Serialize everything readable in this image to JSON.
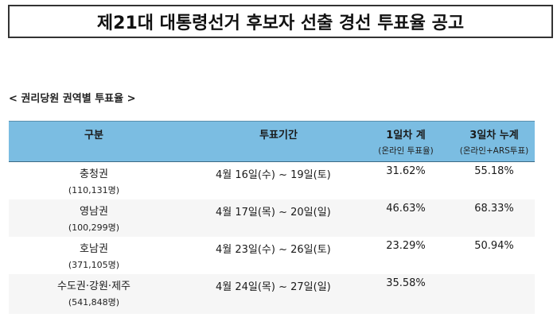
{
  "title": "제21대 대통령선거 후보자 선출 경선 투표율 공고",
  "section_label": "< 권리당원 권역별 투표율 >",
  "table": {
    "header": {
      "region": "구분",
      "period": "투표기간",
      "day1_main": "1일차 계",
      "day1_sub": "(온라인 투표율)",
      "day3_main": "3일차 누계",
      "day3_sub": "(온라인+ARS투표)"
    },
    "header_color": "#7bbde2",
    "rows": [
      {
        "region": "충청권",
        "members": "(110,131명)",
        "period": "4월 16일(수) ~ 19일(토)",
        "day1": "31.62%",
        "day3": "55.18%"
      },
      {
        "region": "영남권",
        "members": "(100,299명)",
        "period": "4월 17일(목) ~ 20일(일)",
        "day1": "46.63%",
        "day3": "68.33%"
      },
      {
        "region": "호남권",
        "members": "(371,105명)",
        "period": "4월 23일(수) ~ 26일(토)",
        "day1": "23.29%",
        "day3": "50.94%"
      },
      {
        "region": "수도권·강원·제주",
        "members": "(541,848명)",
        "period": "4월 24일(목) ~ 27일(일)",
        "day1": "35.58%",
        "day3": ""
      }
    ]
  }
}
